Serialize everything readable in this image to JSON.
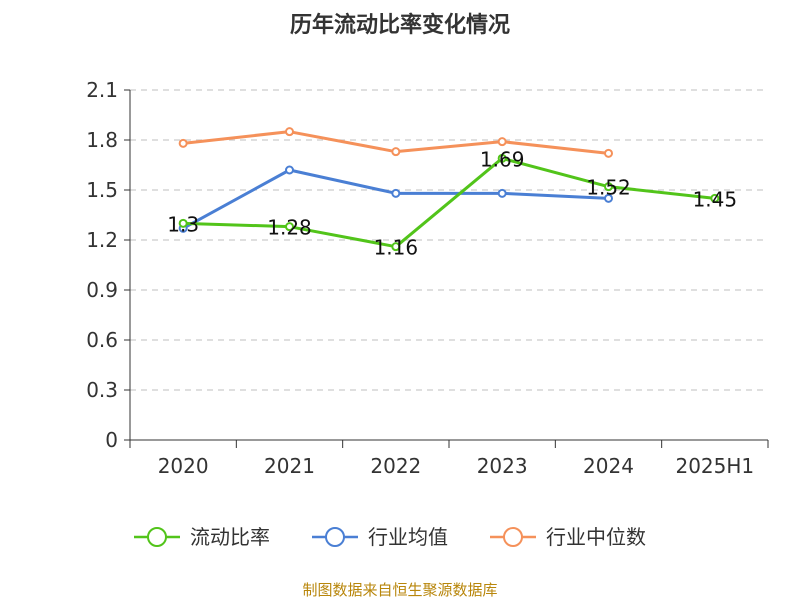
{
  "chart_data": {
    "type": "line",
    "title": "历年流动比率变化情况",
    "categories": [
      "2020",
      "2021",
      "2022",
      "2023",
      "2024",
      "2025H1"
    ],
    "y_ticks": [
      "0",
      "0.3",
      "0.6",
      "0.9",
      "1.2",
      "1.5",
      "1.8",
      "2.1"
    ],
    "ylim": [
      0,
      2.1
    ],
    "grid": "horizontal dashed",
    "legend_position": "bottom",
    "series": [
      {
        "name": "流动比率",
        "color": "#52c41a",
        "values": [
          1.3,
          1.28,
          1.16,
          1.69,
          1.52,
          1.45
        ],
        "labels": [
          "1.3",
          "1.28",
          "1.16",
          "1.69",
          "1.52",
          "1.45"
        ]
      },
      {
        "name": "行业均值",
        "color": "#4a7fd4",
        "values": [
          1.27,
          1.62,
          1.48,
          1.48,
          1.45,
          null
        ]
      },
      {
        "name": "行业中位数",
        "color": "#f5915a",
        "values": [
          1.78,
          1.85,
          1.73,
          1.79,
          1.72,
          null
        ]
      }
    ]
  },
  "source": "制图数据来自恒生聚源数据库"
}
